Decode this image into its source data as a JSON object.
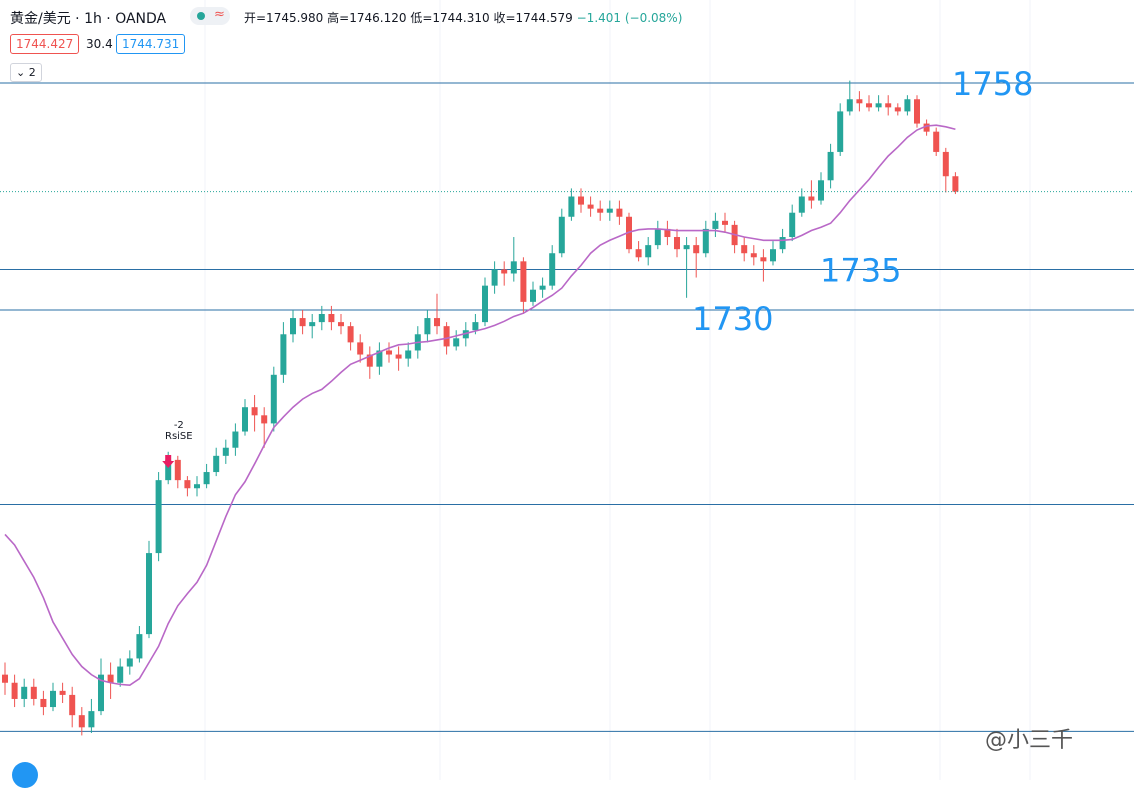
{
  "header": {
    "symbol": "黄金/美元 · 1h · OANDA",
    "open": "开=1745.980",
    "high": "高=1746.120",
    "low": "低=1744.310",
    "close": "收=1744.579",
    "change": "−1.401 (−0.08%)",
    "bid": "1744.427",
    "spread": "30.4",
    "ask": "1744.731",
    "indicator_count": "2"
  },
  "signal": [
    "-2",
    "RsiSE"
  ],
  "watermark": "@小三千",
  "chart_data": {
    "type": "candlestick",
    "up_color": "#26a69a",
    "down_color": "#ef5350",
    "ylim": [
      1672,
      1768
    ],
    "levels": [
      {
        "value": 1758,
        "label": "1758"
      },
      {
        "value": 1735,
        "label": "1735"
      },
      {
        "value": 1730,
        "label": "1730"
      },
      1706,
      1678
    ],
    "open": [
      1685,
      1684,
      1682,
      1683.5,
      1682,
      1681,
      1683,
      1682.5,
      1680,
      1678.5,
      1680.5,
      1685,
      1684,
      1686,
      1687,
      1690,
      1700,
      1709,
      1711.5,
      1709,
      1708,
      1708.5,
      1710,
      1712,
      1713,
      1715,
      1718,
      1717,
      1716,
      1722,
      1727,
      1729,
      1728,
      1728.5,
      1729.5,
      1728.5,
      1728,
      1726,
      1724.5,
      1723,
      1725,
      1724.5,
      1724,
      1725,
      1727,
      1729,
      1728,
      1725.5,
      1726.5,
      1727.5,
      1728.5,
      1733,
      1735,
      1734.5,
      1736,
      1731,
      1732.5,
      1733,
      1737,
      1741.5,
      1744,
      1743,
      1742.5,
      1742,
      1742.5,
      1741.5,
      1737.5,
      1736.5,
      1738,
      1740,
      1739,
      1737.5,
      1738,
      1737,
      1740,
      1741,
      1740.5,
      1738,
      1737,
      1736.5,
      1736,
      1737.5,
      1739,
      1742,
      1744,
      1743.5,
      1746,
      1749.5,
      1754.5,
      1756,
      1755.5,
      1755,
      1755.5,
      1755,
      1754.5,
      1756,
      1753,
      1752,
      1749.5,
      1746.5
    ],
    "high": [
      1686.5,
      1685,
      1684.5,
      1684.5,
      1683,
      1684,
      1684,
      1683.5,
      1681,
      1682,
      1687,
      1686.5,
      1687,
      1688,
      1691,
      1701.5,
      1710,
      1712.5,
      1712,
      1709.5,
      1709.5,
      1711,
      1713,
      1714,
      1716,
      1719,
      1719.5,
      1718,
      1723,
      1728.5,
      1730,
      1730,
      1729.5,
      1730.5,
      1730.5,
      1729.5,
      1728.5,
      1727,
      1725.5,
      1726,
      1726,
      1725.5,
      1726,
      1728,
      1730,
      1732,
      1728.5,
      1727.5,
      1728.5,
      1729.5,
      1734,
      1736,
      1736,
      1739,
      1736.5,
      1733.5,
      1734,
      1738,
      1742.5,
      1745,
      1745,
      1744,
      1743.5,
      1743.5,
      1743.5,
      1742,
      1738.5,
      1739,
      1741,
      1741,
      1740,
      1739,
      1739,
      1741,
      1742,
      1742,
      1741,
      1739,
      1738,
      1737.5,
      1738.5,
      1740,
      1743,
      1745,
      1746,
      1747,
      1750.5,
      1755.5,
      1758.3,
      1757,
      1756.5,
      1756.5,
      1756.5,
      1755.5,
      1756.5,
      1756.5,
      1753.5,
      1752.5,
      1750,
      1747
    ],
    "low": [
      1682.5,
      1681,
      1681,
      1681.2,
      1680,
      1680.5,
      1681.5,
      1678.5,
      1677.5,
      1677.8,
      1680,
      1682,
      1683.5,
      1685,
      1686.5,
      1689.5,
      1699,
      1708.5,
      1708,
      1707,
      1707,
      1708,
      1709.5,
      1711,
      1712,
      1714.5,
      1715,
      1713,
      1715,
      1721,
      1726,
      1727,
      1726.5,
      1727.5,
      1727.5,
      1727,
      1725,
      1723.5,
      1721.5,
      1722,
      1723.5,
      1722.5,
      1723,
      1724,
      1726,
      1727,
      1724.5,
      1725,
      1725.5,
      1727,
      1728,
      1732,
      1733,
      1733.5,
      1729.5,
      1730.5,
      1731.5,
      1732.5,
      1736.5,
      1741,
      1742,
      1741.5,
      1741,
      1741,
      1740.5,
      1737,
      1736,
      1735.5,
      1737.5,
      1738,
      1736.5,
      1731.5,
      1734,
      1736.5,
      1739,
      1739.5,
      1737,
      1736,
      1735.5,
      1733.5,
      1735.5,
      1737,
      1738.5,
      1741.5,
      1742.5,
      1743,
      1745,
      1749,
      1754,
      1754.5,
      1754.5,
      1754.5,
      1754,
      1754,
      1754,
      1752.5,
      1751.5,
      1749,
      1744.5,
      1744.3
    ],
    "close": [
      1684,
      1682,
      1683.5,
      1682,
      1681,
      1683,
      1682.5,
      1680,
      1678.5,
      1680.5,
      1685,
      1684,
      1686,
      1687,
      1690,
      1700,
      1709,
      1711.5,
      1709,
      1708,
      1708.5,
      1710,
      1712,
      1713,
      1715,
      1718,
      1717,
      1716,
      1722,
      1727,
      1729,
      1728,
      1728.5,
      1729.5,
      1728.5,
      1728,
      1726,
      1724.5,
      1723,
      1725,
      1724.5,
      1724,
      1725,
      1727,
      1729,
      1728,
      1725.5,
      1726.5,
      1727.5,
      1728.5,
      1733,
      1735,
      1734.5,
      1736,
      1731,
      1732.5,
      1733,
      1737,
      1741.5,
      1744,
      1743,
      1742.5,
      1742,
      1742.5,
      1741.5,
      1737.5,
      1736.5,
      1738,
      1740,
      1739,
      1737.5,
      1738,
      1737,
      1740,
      1741,
      1740.5,
      1738,
      1737,
      1736.5,
      1736,
      1737.5,
      1739,
      1742,
      1744,
      1743.5,
      1746,
      1749.5,
      1754.5,
      1756,
      1755.5,
      1755,
      1755.5,
      1755,
      1754.5,
      1756,
      1753,
      1752,
      1749.5,
      1746.5,
      1744.6
    ],
    "ma": {
      "color": "#b968c7",
      "values": [
        1702.3,
        1701,
        1699,
        1697,
        1694.5,
        1691.5,
        1689.5,
        1687.5,
        1686,
        1685,
        1684.3,
        1684,
        1683.8,
        1683.7,
        1684.5,
        1686.5,
        1688.5,
        1691.3,
        1693.5,
        1695,
        1696.4,
        1698.5,
        1701.5,
        1704.5,
        1707.2,
        1708.8,
        1711,
        1713.3,
        1715.5,
        1716.8,
        1718,
        1719,
        1719.7,
        1720.2,
        1721.2,
        1722.3,
        1723.3,
        1723.8,
        1724.3,
        1724.8,
        1725.3,
        1725.7,
        1725.8,
        1726,
        1726.1,
        1726.3,
        1726.5,
        1726.8,
        1727.1,
        1727.4,
        1727.7,
        1728.1,
        1728.6,
        1729.2,
        1729.6,
        1730.3,
        1731.1,
        1731.8,
        1732.7,
        1734.2,
        1735.5,
        1737,
        1738,
        1738.6,
        1739.1,
        1739.6,
        1739.9,
        1740,
        1740,
        1739.9,
        1739.8,
        1739.8,
        1739.8,
        1739.8,
        1739.8,
        1739.6,
        1739.3,
        1739,
        1738.8,
        1738.6,
        1738.6,
        1738.6,
        1738.7,
        1739.2,
        1739.8,
        1740.2,
        1740.7,
        1742,
        1743.5,
        1744.8,
        1746.1,
        1747.6,
        1749,
        1750.1,
        1751.3,
        1752.2,
        1752.7,
        1752.8,
        1752.6,
        1752.3
      ]
    }
  }
}
